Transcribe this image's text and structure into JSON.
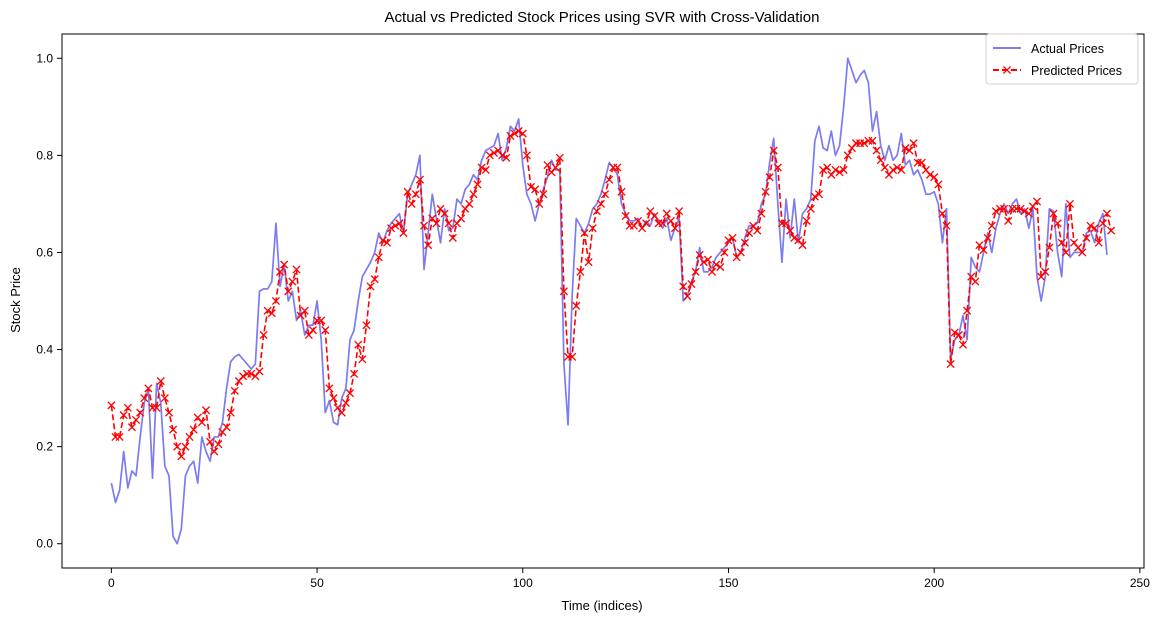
{
  "chart_data": {
    "type": "line",
    "title": "Actual vs Predicted Stock Prices using SVR with Cross-Validation",
    "xlabel": "Time (indices)",
    "ylabel": "Stock Price",
    "xlim": [
      -12,
      251
    ],
    "ylim": [
      -0.05,
      1.05
    ],
    "xticks": [
      0,
      50,
      100,
      150,
      200,
      250
    ],
    "yticks": [
      0.0,
      0.2,
      0.4,
      0.6,
      0.8,
      1.0
    ],
    "xtick_labels": [
      "0",
      "50",
      "100",
      "150",
      "200",
      "250"
    ],
    "ytick_labels": [
      "0.0",
      "0.2",
      "0.4",
      "0.6",
      "0.8",
      "1.0"
    ],
    "grid": false,
    "legend_position": "top-right",
    "series": [
      {
        "name": "Actual Prices",
        "color": "#7b7bf2",
        "style": "solid",
        "marker": "none",
        "values": [
          0.125,
          0.085,
          0.11,
          0.19,
          0.115,
          0.15,
          0.14,
          0.22,
          0.29,
          0.32,
          0.135,
          0.33,
          0.29,
          0.16,
          0.14,
          0.015,
          0.0,
          0.03,
          0.14,
          0.16,
          0.17,
          0.125,
          0.22,
          0.19,
          0.17,
          0.22,
          0.22,
          0.25,
          0.32,
          0.375,
          0.385,
          0.39,
          0.38,
          0.37,
          0.36,
          0.37,
          0.52,
          0.525,
          0.525,
          0.54,
          0.66,
          0.53,
          0.575,
          0.5,
          0.52,
          0.46,
          0.48,
          0.43,
          0.45,
          0.45,
          0.5,
          0.42,
          0.27,
          0.295,
          0.25,
          0.245,
          0.3,
          0.32,
          0.42,
          0.44,
          0.5,
          0.55,
          0.565,
          0.58,
          0.6,
          0.64,
          0.62,
          0.645,
          0.66,
          0.67,
          0.68,
          0.64,
          0.72,
          0.74,
          0.76,
          0.8,
          0.565,
          0.64,
          0.72,
          0.67,
          0.62,
          0.69,
          0.645,
          0.65,
          0.71,
          0.7,
          0.73,
          0.74,
          0.76,
          0.75,
          0.79,
          0.81,
          0.815,
          0.82,
          0.845,
          0.79,
          0.815,
          0.86,
          0.85,
          0.875,
          0.78,
          0.72,
          0.7,
          0.665,
          0.7,
          0.73,
          0.755,
          0.79,
          0.77,
          0.77,
          0.37,
          0.245,
          0.51,
          0.67,
          0.655,
          0.64,
          0.66,
          0.69,
          0.7,
          0.72,
          0.75,
          0.785,
          0.775,
          0.76,
          0.7,
          0.68,
          0.665,
          0.665,
          0.67,
          0.65,
          0.665,
          0.655,
          0.68,
          0.665,
          0.65,
          0.67,
          0.625,
          0.65,
          0.67,
          0.5,
          0.51,
          0.54,
          0.56,
          0.61,
          0.56,
          0.56,
          0.57,
          0.59,
          0.6,
          0.61,
          0.62,
          0.63,
          0.59,
          0.6,
          0.63,
          0.655,
          0.655,
          0.66,
          0.7,
          0.72,
          0.785,
          0.835,
          0.7,
          0.58,
          0.71,
          0.63,
          0.71,
          0.62,
          0.68,
          0.69,
          0.71,
          0.83,
          0.86,
          0.815,
          0.81,
          0.85,
          0.8,
          0.82,
          0.9,
          1.0,
          0.975,
          0.95,
          0.965,
          0.975,
          0.95,
          0.85,
          0.89,
          0.82,
          0.79,
          0.82,
          0.79,
          0.8,
          0.845,
          0.78,
          0.79,
          0.76,
          0.77,
          0.75,
          0.72,
          0.72,
          0.725,
          0.7,
          0.62,
          0.69,
          0.38,
          0.42,
          0.43,
          0.47,
          0.42,
          0.59,
          0.57,
          0.56,
          0.6,
          0.64,
          0.6,
          0.65,
          0.68,
          0.7,
          0.68,
          0.7,
          0.71,
          0.68,
          0.69,
          0.65,
          0.69,
          0.55,
          0.5,
          0.55,
          0.69,
          0.685,
          0.6,
          0.55,
          0.7,
          0.59,
          0.6,
          0.6,
          0.6,
          0.64,
          0.645,
          0.62,
          0.66,
          0.68,
          0.595
        ]
      },
      {
        "name": "Predicted Prices",
        "color": "#ff0000",
        "style": "dashed",
        "marker": "x",
        "values": [
          0.285,
          0.22,
          0.22,
          0.265,
          0.28,
          0.24,
          0.255,
          0.27,
          0.3,
          0.32,
          0.28,
          0.28,
          0.335,
          0.3,
          0.27,
          0.235,
          0.2,
          0.18,
          0.2,
          0.22,
          0.235,
          0.26,
          0.25,
          0.275,
          0.21,
          0.19,
          0.205,
          0.23,
          0.24,
          0.27,
          0.315,
          0.335,
          0.345,
          0.35,
          0.35,
          0.345,
          0.355,
          0.43,
          0.48,
          0.475,
          0.5,
          0.56,
          0.575,
          0.52,
          0.54,
          0.565,
          0.47,
          0.48,
          0.43,
          0.44,
          0.46,
          0.46,
          0.44,
          0.32,
          0.3,
          0.28,
          0.27,
          0.29,
          0.31,
          0.35,
          0.41,
          0.38,
          0.45,
          0.53,
          0.545,
          0.59,
          0.625,
          0.62,
          0.65,
          0.655,
          0.66,
          0.64,
          0.725,
          0.7,
          0.72,
          0.75,
          0.655,
          0.615,
          0.67,
          0.66,
          0.69,
          0.68,
          0.66,
          0.63,
          0.66,
          0.67,
          0.69,
          0.7,
          0.72,
          0.74,
          0.775,
          0.77,
          0.8,
          0.805,
          0.81,
          0.8,
          0.795,
          0.84,
          0.845,
          0.85,
          0.845,
          0.8,
          0.735,
          0.73,
          0.7,
          0.72,
          0.78,
          0.765,
          0.775,
          0.795,
          0.52,
          0.385,
          0.385,
          0.49,
          0.56,
          0.64,
          0.58,
          0.65,
          0.685,
          0.7,
          0.72,
          0.75,
          0.775,
          0.775,
          0.725,
          0.675,
          0.655,
          0.655,
          0.665,
          0.65,
          0.66,
          0.685,
          0.675,
          0.66,
          0.66,
          0.68,
          0.665,
          0.65,
          0.685,
          0.53,
          0.51,
          0.535,
          0.56,
          0.595,
          0.58,
          0.585,
          0.56,
          0.575,
          0.57,
          0.6,
          0.625,
          0.63,
          0.59,
          0.6,
          0.62,
          0.64,
          0.655,
          0.645,
          0.68,
          0.725,
          0.755,
          0.81,
          0.775,
          0.66,
          0.66,
          0.645,
          0.63,
          0.625,
          0.615,
          0.665,
          0.69,
          0.715,
          0.72,
          0.77,
          0.775,
          0.76,
          0.77,
          0.765,
          0.77,
          0.8,
          0.815,
          0.825,
          0.825,
          0.825,
          0.83,
          0.83,
          0.81,
          0.79,
          0.775,
          0.76,
          0.77,
          0.775,
          0.77,
          0.815,
          0.81,
          0.825,
          0.785,
          0.785,
          0.77,
          0.76,
          0.755,
          0.74,
          0.68,
          0.655,
          0.37,
          0.435,
          0.43,
          0.41,
          0.48,
          0.55,
          0.54,
          0.615,
          0.605,
          0.63,
          0.655,
          0.685,
          0.69,
          0.69,
          0.665,
          0.69,
          0.69,
          0.69,
          0.685,
          0.68,
          0.695,
          0.705,
          0.55,
          0.56,
          0.61,
          0.68,
          0.66,
          0.62,
          0.6,
          0.7,
          0.62,
          0.61,
          0.6,
          0.63,
          0.655,
          0.65,
          0.62,
          0.66,
          0.68,
          0.645
        ]
      }
    ]
  }
}
